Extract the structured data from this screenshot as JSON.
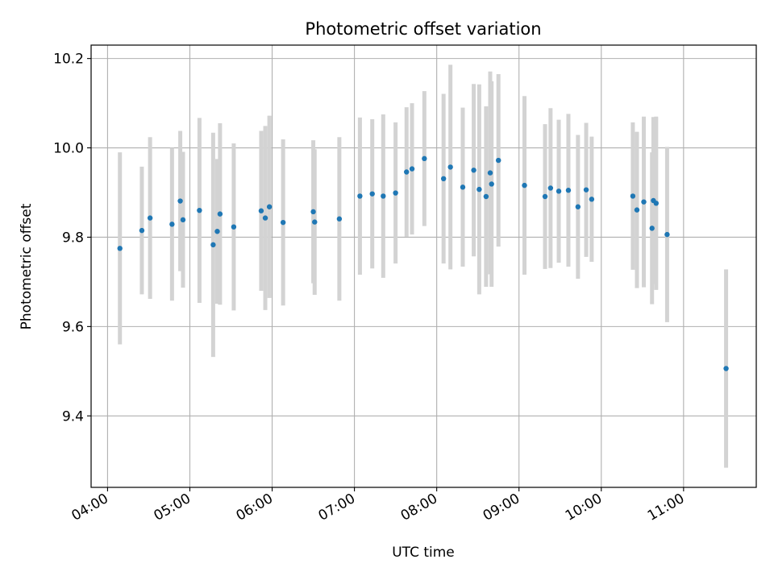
{
  "chart_data": {
    "type": "scatter",
    "title": "Photometric offset variation",
    "xlabel": "UTC time",
    "ylabel": "Photometric offset",
    "xlim": [
      "03:48",
      "11:53"
    ],
    "ylim": [
      9.24,
      10.23
    ],
    "x_ticks": [
      "04:00",
      "05:00",
      "06:00",
      "07:00",
      "08:00",
      "09:00",
      "10:00",
      "11:00"
    ],
    "y_ticks": [
      9.4,
      9.6,
      9.8,
      10.0,
      10.2
    ],
    "y_tick_labels": [
      "9.4",
      "9.6",
      "9.8",
      "10.0",
      "10.2"
    ],
    "grid": true,
    "colors": {
      "point": "#1f77b4",
      "error_bar": "#d3d3d3"
    },
    "series": [
      {
        "x": [
          "04:09",
          "04:25",
          "04:31",
          "04:47",
          "04:53",
          "04:55",
          "05:07",
          "05:17",
          "05:20",
          "05:22",
          "05:32",
          "05:52",
          "05:55",
          "05:58",
          "06:08",
          "06:30",
          "06:31",
          "06:49",
          "07:04",
          "07:13",
          "07:21",
          "07:30",
          "07:38",
          "07:42",
          "07:51",
          "08:05",
          "08:10",
          "08:19",
          "08:27",
          "08:31",
          "08:36",
          "08:39",
          "08:40",
          "08:45",
          "09:04",
          "09:19",
          "09:23",
          "09:29",
          "09:36",
          "09:43",
          "09:49",
          "09:53",
          "10:23",
          "10:26",
          "10:31",
          "10:37",
          "10:38",
          "10:40",
          "10:48",
          "11:31"
        ],
        "y": [
          9.775,
          9.815,
          9.843,
          9.829,
          9.881,
          9.839,
          9.86,
          9.783,
          9.813,
          9.852,
          9.823,
          9.859,
          9.843,
          9.868,
          9.833,
          9.857,
          9.834,
          9.841,
          9.892,
          9.897,
          9.892,
          9.899,
          9.946,
          9.953,
          9.976,
          9.931,
          9.957,
          9.912,
          9.95,
          9.907,
          9.891,
          9.944,
          9.919,
          9.972,
          9.916,
          9.891,
          9.91,
          9.903,
          9.905,
          9.868,
          9.906,
          9.885,
          9.892,
          9.861,
          9.879,
          9.82,
          9.882,
          9.876,
          9.806,
          9.506
        ],
        "yerr": [
          0.215,
          0.143,
          0.181,
          0.171,
          0.157,
          0.152,
          0.207,
          0.251,
          0.162,
          0.203,
          0.187,
          0.179,
          0.206,
          0.204,
          0.186,
          0.16,
          0.163,
          0.183,
          0.176,
          0.167,
          0.183,
          0.158,
          0.145,
          0.147,
          0.151,
          0.19,
          0.229,
          0.178,
          0.193,
          0.235,
          0.202,
          0.227,
          0.23,
          0.193,
          0.2,
          0.162,
          0.179,
          0.16,
          0.171,
          0.161,
          0.15,
          0.14,
          0.165,
          0.175,
          0.191,
          0.17,
          0.187,
          0.194,
          0.196,
          0.222
        ]
      }
    ]
  }
}
